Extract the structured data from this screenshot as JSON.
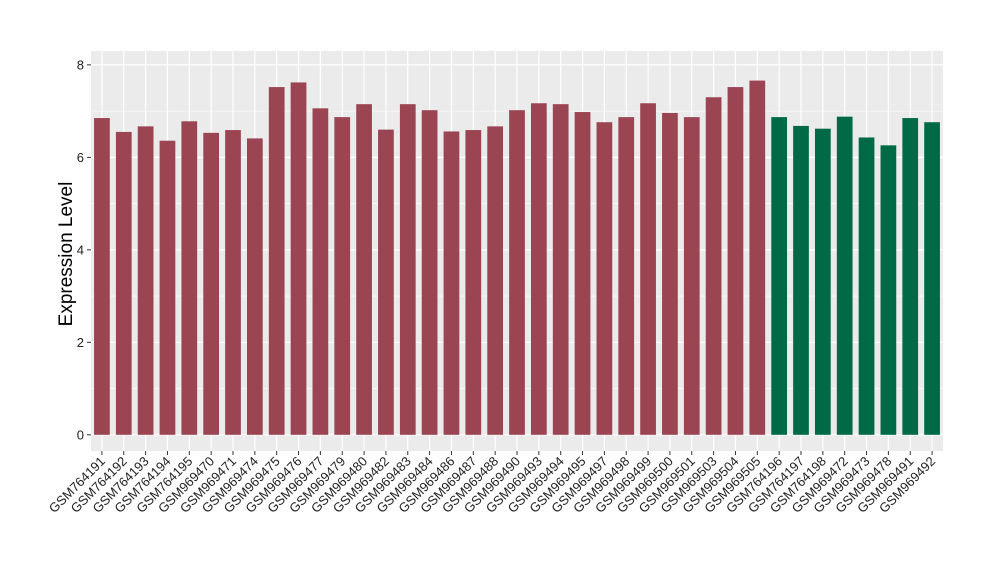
{
  "chart_data": {
    "type": "bar",
    "title": "",
    "xlabel": "",
    "ylabel": "Expression Level",
    "ylim": [
      -0.35,
      8.3
    ],
    "yticks": [
      0,
      2,
      4,
      6,
      8
    ],
    "grid": true,
    "categories": [
      "GSM764191",
      "GSM764192",
      "GSM764193",
      "GSM764194",
      "GSM764195",
      "GSM969470",
      "GSM969471",
      "GSM969474",
      "GSM969475",
      "GSM969476",
      "GSM969477",
      "GSM969479",
      "GSM969480",
      "GSM969482",
      "GSM969483",
      "GSM969484",
      "GSM969486",
      "GSM969487",
      "GSM969488",
      "GSM969490",
      "GSM969493",
      "GSM969494",
      "GSM969495",
      "GSM969497",
      "GSM969498",
      "GSM969499",
      "GSM969500",
      "GSM969501",
      "GSM969503",
      "GSM969504",
      "GSM969505",
      "GSM764196",
      "GSM764197",
      "GSM764198",
      "GSM969472",
      "GSM969473",
      "GSM969478",
      "GSM969491",
      "GSM969492"
    ],
    "values": [
      6.85,
      6.55,
      6.67,
      6.36,
      6.78,
      6.53,
      6.59,
      6.41,
      7.52,
      7.62,
      7.06,
      6.87,
      7.15,
      6.6,
      7.15,
      7.02,
      6.56,
      6.59,
      6.67,
      7.02,
      7.17,
      7.15,
      6.98,
      6.76,
      6.87,
      7.17,
      6.96,
      6.87,
      7.3,
      7.52,
      7.66,
      6.87,
      6.68,
      6.62,
      6.88,
      6.43,
      6.26,
      6.85,
      6.76
    ],
    "groups": [
      0,
      0,
      0,
      0,
      0,
      0,
      0,
      0,
      0,
      0,
      0,
      0,
      0,
      0,
      0,
      0,
      0,
      0,
      0,
      0,
      0,
      0,
      0,
      0,
      0,
      0,
      0,
      0,
      0,
      0,
      0,
      1,
      1,
      1,
      1,
      1,
      1,
      1,
      1
    ],
    "group_colors": [
      "#9B4452",
      "#006A46"
    ],
    "panel_background": "#EBEBEB",
    "gridline_color": "#FFFFFF"
  }
}
